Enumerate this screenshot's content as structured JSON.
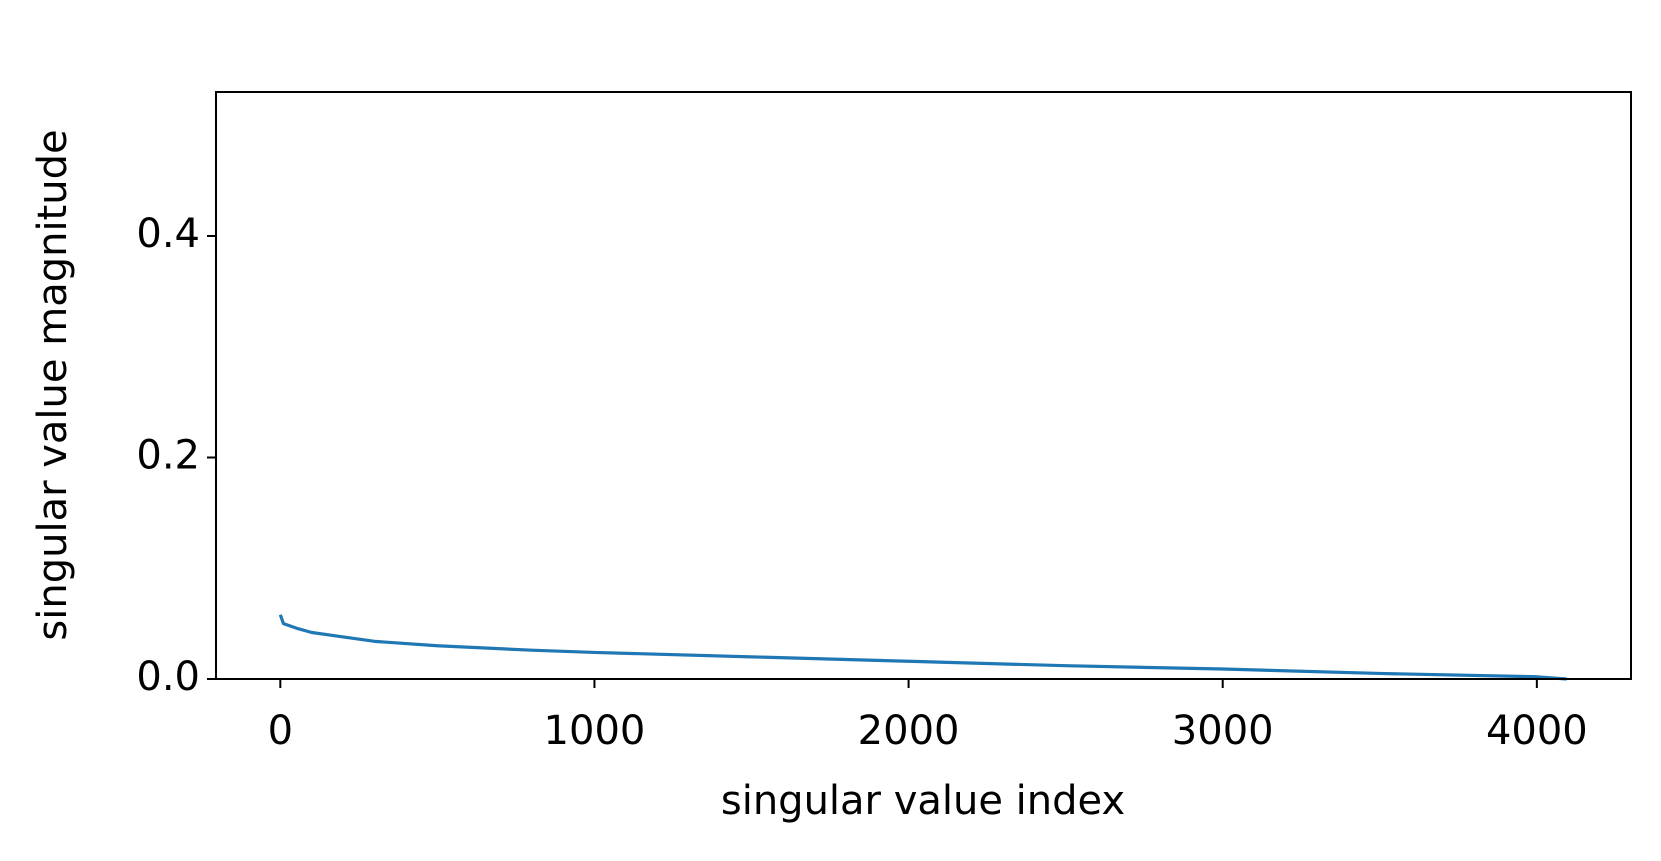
{
  "chart_data": {
    "type": "line",
    "x_label": "singular value index",
    "y_label": "singular value magnitude",
    "x": [
      0,
      10,
      50,
      100,
      200,
      300,
      500,
      800,
      1000,
      1500,
      2000,
      2500,
      3000,
      3500,
      4000,
      4095
    ],
    "series": [
      {
        "color": "#1f77b4",
        "values": [
          0.058,
          0.05,
          0.046,
          0.042,
          0.038,
          0.034,
          0.03,
          0.026,
          0.024,
          0.02,
          0.016,
          0.012,
          0.009,
          0.005,
          0.002,
          0.0
        ]
      }
    ],
    "xlim": [
      -204.75,
      4299.75
    ],
    "ylim": [
      0,
      0.53
    ],
    "xticks": [
      0,
      1000,
      2000,
      3000,
      4000
    ],
    "yticks": [
      {
        "value": 0,
        "label": "0.0"
      },
      {
        "value": 0.2,
        "label": "0.2"
      },
      {
        "value": 0.4,
        "label": "0.4"
      }
    ]
  }
}
